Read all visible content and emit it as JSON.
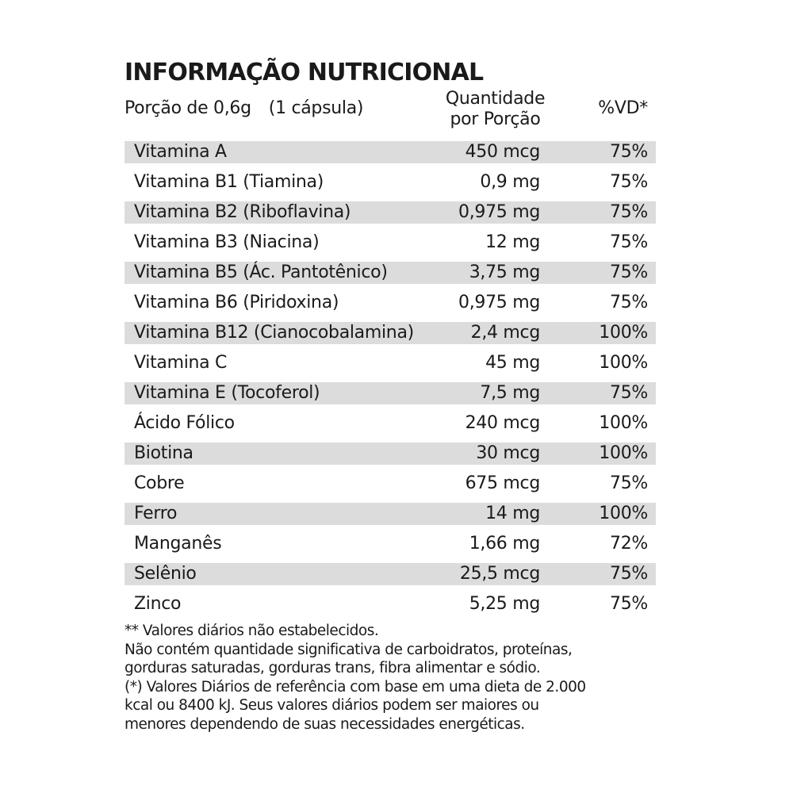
{
  "title": "INFORMAÇÃO NUTRICIONAL",
  "header": {
    "portion": "Porção de 0,6g",
    "capsule": "(1 cápsula)",
    "quantity_line1": "Quantidade",
    "quantity_line2": "por Porção",
    "vd": "%VD*"
  },
  "rows": [
    {
      "name": "Vitamina A",
      "amount": "450 mcg",
      "vd": "75%",
      "shaded": true
    },
    {
      "name": "Vitamina B1 (Tiamina)",
      "amount": "0,9 mg",
      "vd": "75%",
      "shaded": false
    },
    {
      "name": "Vitamina B2 (Riboflavina)",
      "amount": "0,975 mg",
      "vd": "75%",
      "shaded": true
    },
    {
      "name": "Vitamina B3 (Niacina)",
      "amount": "12 mg",
      "vd": "75%",
      "shaded": false
    },
    {
      "name": "Vitamina B5 (Ác. Pantotênico)",
      "amount": "3,75 mg",
      "vd": "75%",
      "shaded": true
    },
    {
      "name": "Vitamina B6 (Piridoxina)",
      "amount": "0,975 mg",
      "vd": "75%",
      "shaded": false
    },
    {
      "name": "Vitamina B12 (Cianocobalamina)",
      "amount": "2,4 mcg",
      "vd": "100%",
      "shaded": true
    },
    {
      "name": "Vitamina C",
      "amount": "45 mg",
      "vd": "100%",
      "shaded": false
    },
    {
      "name": "Vitamina E (Tocoferol)",
      "amount": "7,5 mg",
      "vd": "75%",
      "shaded": true
    },
    {
      "name": "Ácido Fólico",
      "amount": "240 mcg",
      "vd": "100%",
      "shaded": false
    },
    {
      "name": "Biotina",
      "amount": "30 mcg",
      "vd": "100%",
      "shaded": true
    },
    {
      "name": "Cobre",
      "amount": "675 mcg",
      "vd": "75%",
      "shaded": false
    },
    {
      "name": "Ferro",
      "amount": "14 mg",
      "vd": "100%",
      "shaded": true
    },
    {
      "name": "Manganês",
      "amount": "1,66 mg",
      "vd": "72%",
      "shaded": false
    },
    {
      "name": "Selênio",
      "amount": "25,5 mcg",
      "vd": "75%",
      "shaded": true
    },
    {
      "name": "Zinco",
      "amount": "5,25 mg",
      "vd": "75%",
      "shaded": false
    }
  ],
  "notes": [
    "** Valores  diários  não estabelecidos.",
    "Não contém quantidade significativa de carboidratos, proteínas,",
    "gorduras saturadas, gorduras trans, fibra alimentar e sódio.",
    "(*) Valores Diários de referência com base em uma dieta de 2.000",
    "kcal ou 8400 kJ. Seus valores diários podem ser maiores ou",
    "menores dependendo de suas necessidades energéticas."
  ]
}
